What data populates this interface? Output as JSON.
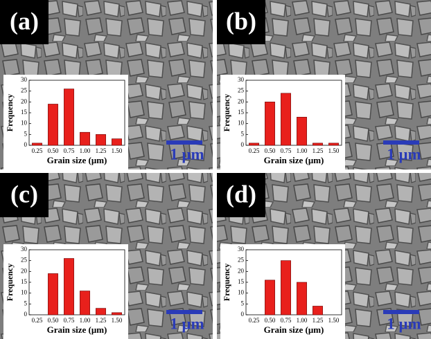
{
  "chart_data": [
    {
      "type": "bar",
      "panel_label": "(a)",
      "scale_bar": "1 μm",
      "x_label": "Grain size (μm)",
      "y_label": "Frequency",
      "categories": [
        "0.25",
        "0.50",
        "0.75",
        "1.00",
        "1.25",
        "1.50"
      ],
      "values": [
        1,
        19,
        26,
        6,
        5,
        3
      ],
      "color": "#e8201c",
      "ylim": [
        0,
        30
      ],
      "yticks": [
        0,
        5,
        10,
        15,
        20,
        25,
        30
      ]
    },
    {
      "type": "bar",
      "panel_label": "(b)",
      "scale_bar": "1 μm",
      "x_label": "Grain size (μm)",
      "y_label": "Frequency",
      "categories": [
        "0.25",
        "0.50",
        "0.75",
        "1.00",
        "1.25",
        "1.50"
      ],
      "values": [
        1,
        20,
        24,
        13,
        1,
        1
      ],
      "color": "#e8201c",
      "ylim": [
        0,
        30
      ],
      "yticks": [
        0,
        5,
        10,
        15,
        20,
        25,
        30
      ]
    },
    {
      "type": "bar",
      "panel_label": "(c)",
      "scale_bar": "1 μm",
      "x_label": "Grain size (μm)",
      "y_label": "Frequency",
      "categories": [
        "0.25",
        "0.50",
        "0.75",
        "1.00",
        "1.25",
        "1.50"
      ],
      "values": [
        0,
        19,
        26,
        11,
        3,
        1
      ],
      "color": "#e8201c",
      "ylim": [
        0,
        30
      ],
      "yticks": [
        0,
        5,
        10,
        15,
        20,
        25,
        30
      ]
    },
    {
      "type": "bar",
      "panel_label": "(d)",
      "scale_bar": "1 μm",
      "x_label": "Grain size (μm)",
      "y_label": "Frequency",
      "categories": [
        "0.25",
        "0.50",
        "0.75",
        "1.00",
        "1.25",
        "1.50"
      ],
      "values": [
        0,
        16,
        25,
        15,
        4,
        0
      ],
      "color": "#e8201c",
      "ylim": [
        0,
        30
      ],
      "yticks": [
        0,
        5,
        10,
        15,
        20,
        25,
        30
      ]
    }
  ]
}
